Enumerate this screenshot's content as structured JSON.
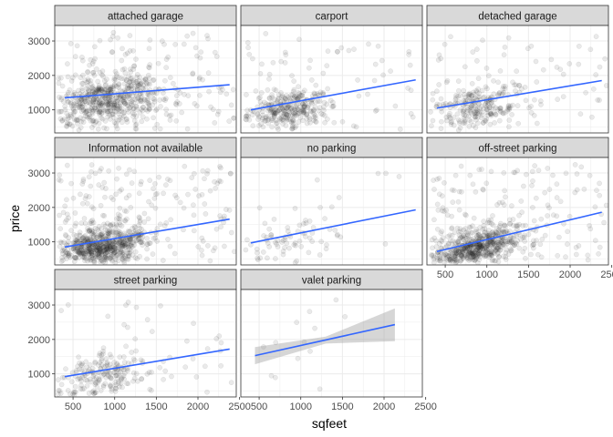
{
  "chart_data": {
    "type": "scatter",
    "xlabel": "sqfeet",
    "ylabel": "price",
    "xlim": [
      280,
      2460
    ],
    "ylim": [
      330,
      3450
    ],
    "x_ticks": [
      500,
      1000,
      1500,
      2000,
      2500
    ],
    "y_ticks": [
      1000,
      2000,
      3000
    ],
    "grid": true,
    "overlay": "linear fit with confidence band",
    "colors": {
      "points": "#1a1a1a",
      "fit_line": "#3366FF",
      "band": "#999999",
      "strip_bg": "#d9d9d9",
      "panel_border": "#333333",
      "grid": "#ebebeb"
    },
    "panels": [
      {
        "label": "attached garage",
        "density": 1.0,
        "fit": {
          "x": [
            400,
            2380
          ],
          "y": [
            1350,
            1730
          ]
        },
        "cluster": {
          "cx": 950,
          "cy": 1300,
          "sx": 320,
          "sy": 380
        }
      },
      {
        "label": "carport",
        "density": 0.55,
        "fit": {
          "x": [
            400,
            2380
          ],
          "y": [
            1000,
            1870
          ]
        },
        "cluster": {
          "cx": 850,
          "cy": 1050,
          "sx": 280,
          "sy": 300
        }
      },
      {
        "label": "detached garage",
        "density": 0.45,
        "fit": {
          "x": [
            400,
            2380
          ],
          "y": [
            1050,
            1850
          ]
        },
        "cluster": {
          "cx": 850,
          "cy": 1050,
          "sx": 300,
          "sy": 350
        }
      },
      {
        "label": "Information not available",
        "density": 1.2,
        "fit": {
          "x": [
            400,
            2380
          ],
          "y": [
            850,
            1660
          ]
        },
        "cluster": {
          "cx": 850,
          "cy": 1050,
          "sx": 280,
          "sy": 300
        }
      },
      {
        "label": "no parking",
        "density": 0.12,
        "fit": {
          "x": [
            400,
            2380
          ],
          "y": [
            970,
            1930
          ]
        },
        "cluster": {
          "cx": 850,
          "cy": 1050,
          "sx": 280,
          "sy": 350
        }
      },
      {
        "label": "off-street parking",
        "density": 1.1,
        "fit": {
          "x": [
            400,
            2380
          ],
          "y": [
            720,
            1860
          ]
        },
        "cluster": {
          "cx": 850,
          "cy": 1000,
          "sx": 280,
          "sy": 280
        }
      },
      {
        "label": "street parking",
        "density": 0.35,
        "fit": {
          "x": [
            400,
            2380
          ],
          "y": [
            920,
            1720
          ]
        },
        "cluster": {
          "cx": 850,
          "cy": 1050,
          "sx": 260,
          "sy": 320
        }
      },
      {
        "label": "valet parking",
        "density": 0.02,
        "fit": {
          "x": [
            450,
            2130
          ],
          "y": [
            1530,
            2430
          ]
        },
        "band": {
          "x": [
            450,
            1300,
            2130
          ],
          "lo": [
            1280,
            1880,
            1950
          ],
          "hi": [
            1780,
            2080,
            2900
          ]
        },
        "cluster": {
          "cx": 1000,
          "cy": 1600,
          "sx": 450,
          "sy": 500
        }
      }
    ]
  }
}
